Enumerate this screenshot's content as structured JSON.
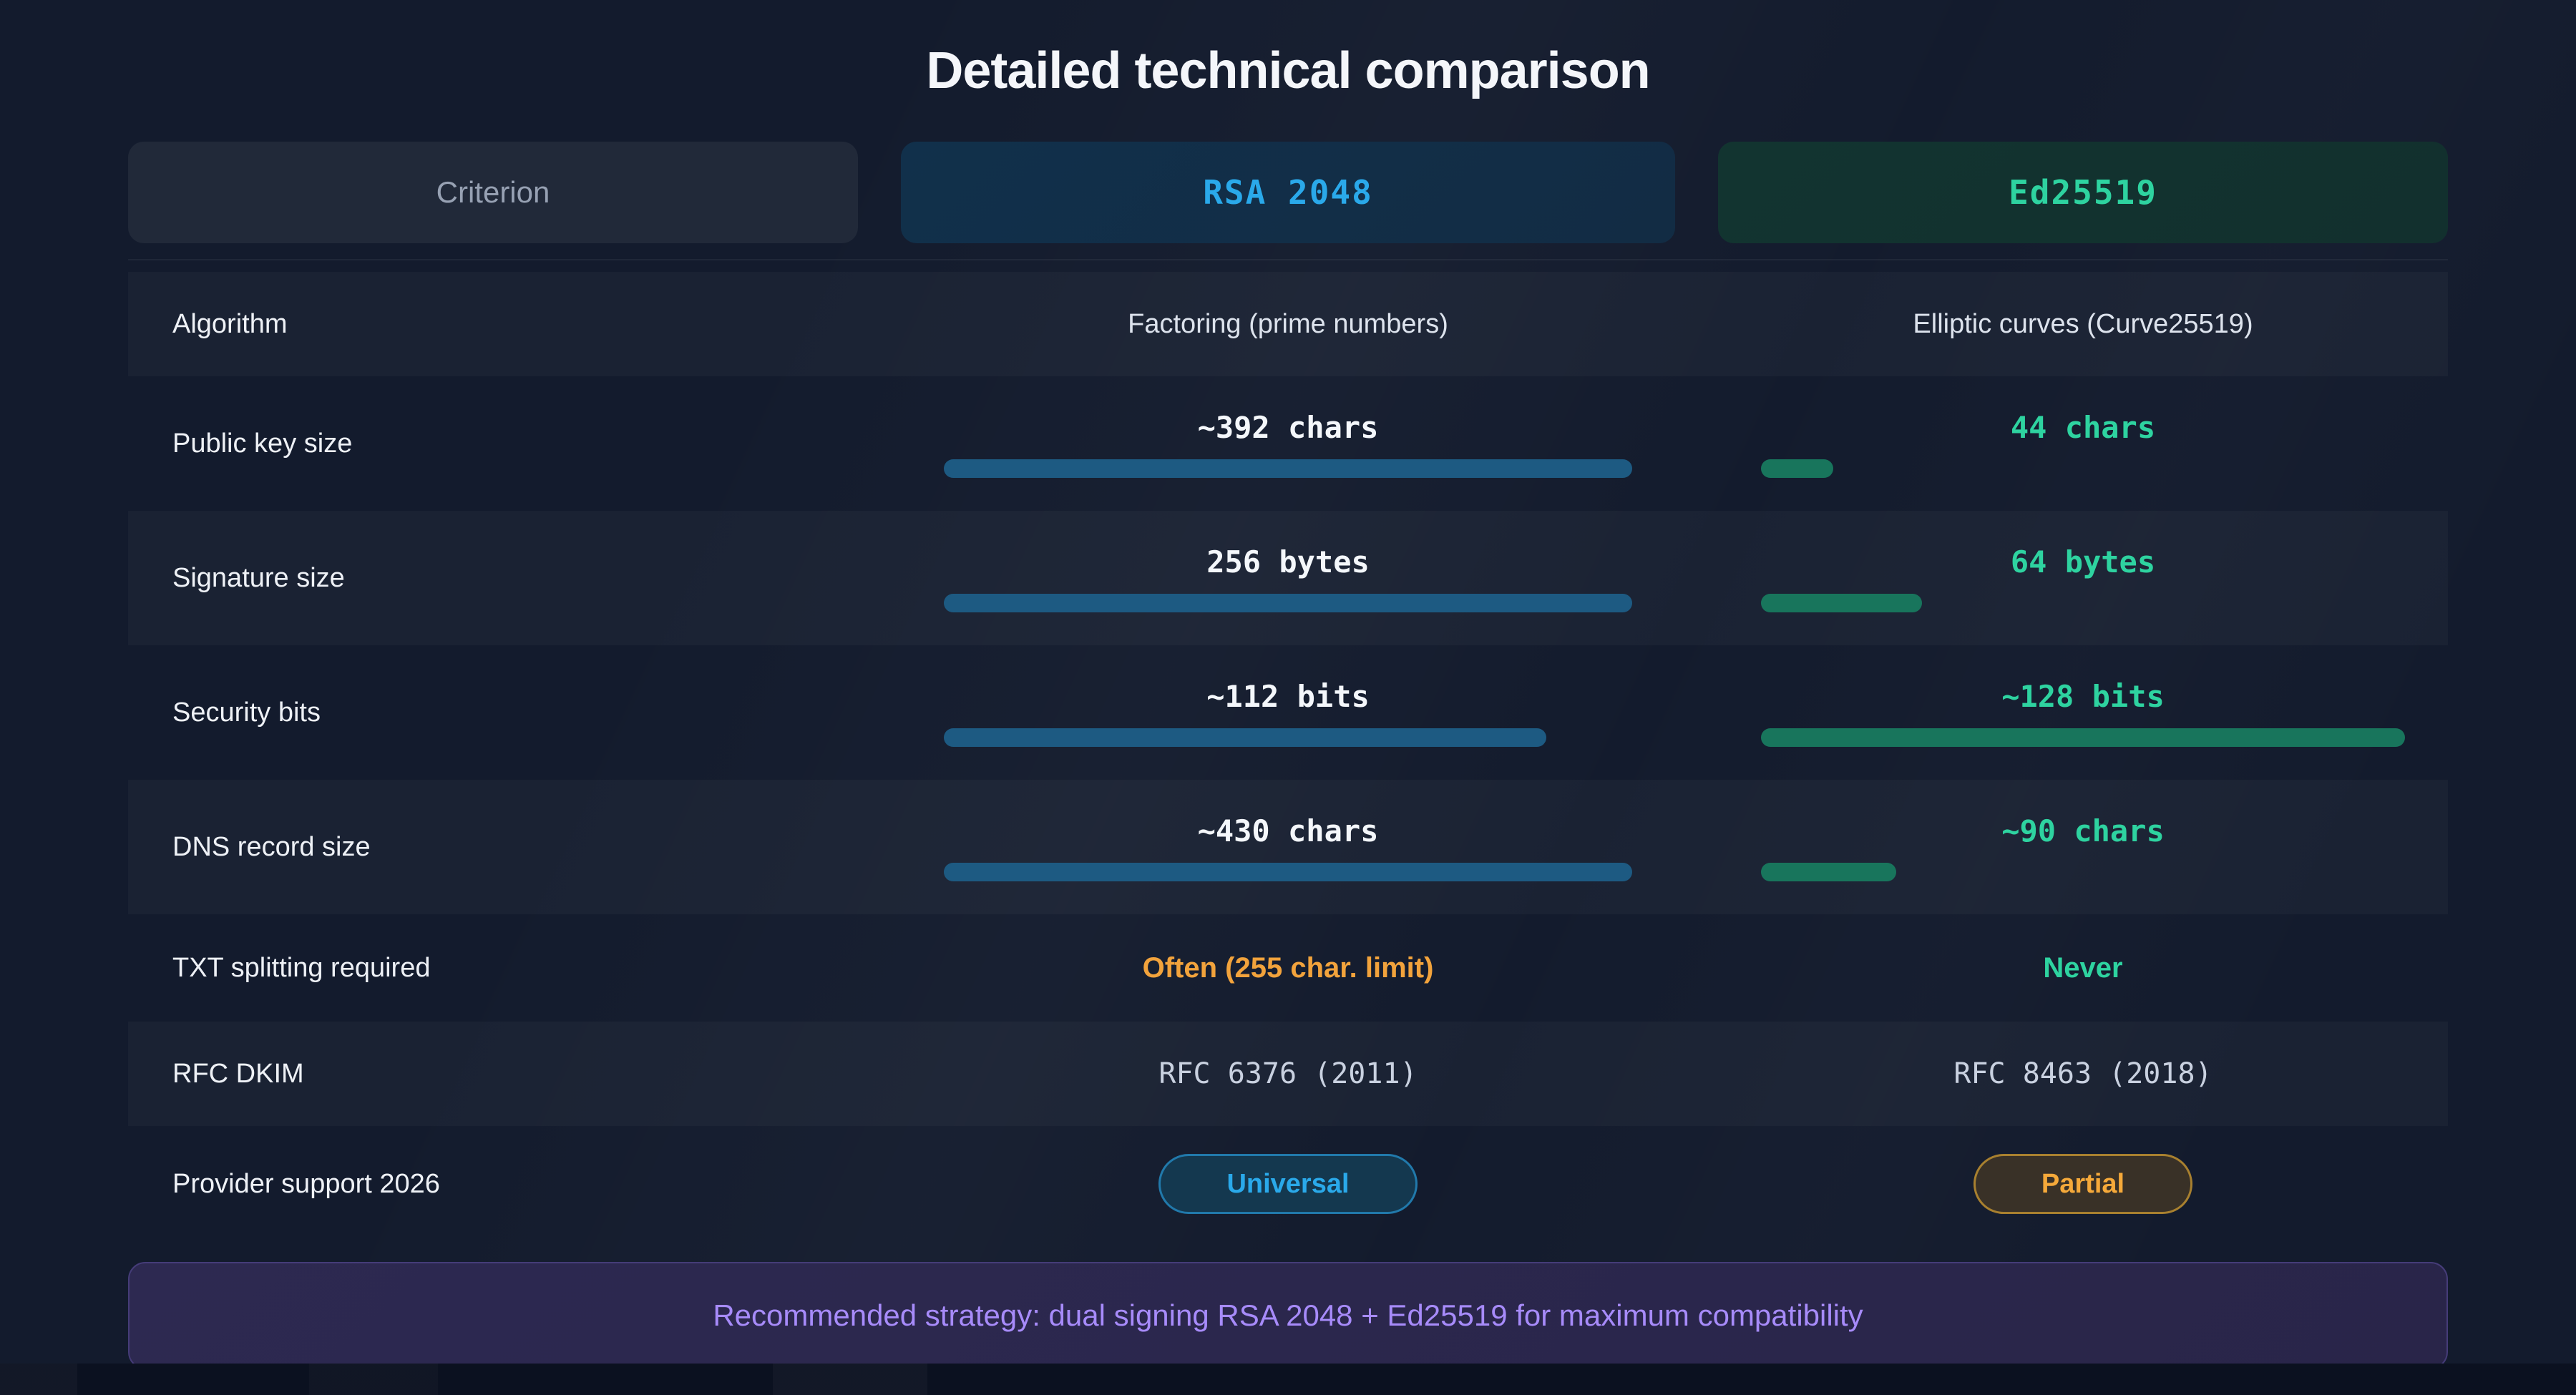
{
  "page": {
    "title": "Detailed technical comparison",
    "banner": "Recommended strategy: dual signing RSA 2048 + Ed25519 for maximum compatibility"
  },
  "colors": {
    "background": "#131b2d",
    "rsa_accent": "#2aa9ea",
    "ed_accent": "#2ed3a0",
    "warning_accent": "#f2a33c",
    "rsa_bar": "#1d5a82",
    "ed_bar": "#18755c",
    "banner_text": "#a78bfa"
  },
  "table": {
    "headers": {
      "criterion": "Criterion",
      "rsa": "RSA 2048",
      "ed": "Ed25519"
    },
    "rows": [
      {
        "label": "Algorithm",
        "type": "text",
        "rsa": "Factoring (prime numbers)",
        "ed": "Elliptic curves (Curve25519)"
      },
      {
        "label": "Public key size",
        "type": "bar",
        "rsa": "~392 chars",
        "rsa_pct": 100,
        "ed": "44 chars",
        "ed_pct": 11.2
      },
      {
        "label": "Signature size",
        "type": "bar",
        "rsa": "256 bytes",
        "rsa_pct": 100,
        "ed": "64 bytes",
        "ed_pct": 25
      },
      {
        "label": "Security bits",
        "type": "bar",
        "rsa": "~112 bits",
        "rsa_pct": 87.5,
        "ed": "~128 bits",
        "ed_pct": 100
      },
      {
        "label": "DNS record size",
        "type": "bar",
        "rsa": "~430 chars",
        "rsa_pct": 100,
        "ed": "~90 chars",
        "ed_pct": 21
      },
      {
        "label": "TXT splitting required",
        "type": "status",
        "rsa": "Often (255 char. limit)",
        "ed": "Never"
      },
      {
        "label": "RFC DKIM",
        "type": "mono",
        "rsa": "RFC 6376 (2011)",
        "ed": "RFC 8463 (2018)"
      },
      {
        "label": "Provider support 2026",
        "type": "badge",
        "rsa": "Universal",
        "ed": "Partial"
      }
    ]
  },
  "chart_data": {
    "type": "table",
    "title": "Detailed technical comparison",
    "columns": [
      "Criterion",
      "RSA 2048",
      "Ed25519"
    ],
    "legend_position": "top",
    "bar_series": [
      {
        "criterion": "Public key size",
        "rsa_value": 392,
        "ed_value": 44,
        "unit": "chars",
        "rsa_bar_pct": 100,
        "ed_bar_pct": 11.2
      },
      {
        "criterion": "Signature size",
        "rsa_value": 256,
        "ed_value": 64,
        "unit": "bytes",
        "rsa_bar_pct": 100,
        "ed_bar_pct": 25
      },
      {
        "criterion": "Security bits",
        "rsa_value": 112,
        "ed_value": 128,
        "unit": "bits",
        "rsa_bar_pct": 87.5,
        "ed_bar_pct": 100
      },
      {
        "criterion": "DNS record size",
        "rsa_value": 430,
        "ed_value": 90,
        "unit": "chars",
        "rsa_bar_pct": 100,
        "ed_bar_pct": 21
      }
    ],
    "text_rows": [
      {
        "criterion": "Algorithm",
        "rsa": "Factoring (prime numbers)",
        "ed": "Elliptic curves (Curve25519)"
      },
      {
        "criterion": "TXT splitting required",
        "rsa": "Often (255 char. limit)",
        "ed": "Never"
      },
      {
        "criterion": "RFC DKIM",
        "rsa": "RFC 6376 (2011)",
        "ed": "RFC 8463 (2018)"
      },
      {
        "criterion": "Provider support 2026",
        "rsa": "Universal",
        "ed": "Partial"
      }
    ],
    "annotations": [
      "Recommended strategy: dual signing RSA 2048 + Ed25519 for maximum compatibility"
    ]
  }
}
